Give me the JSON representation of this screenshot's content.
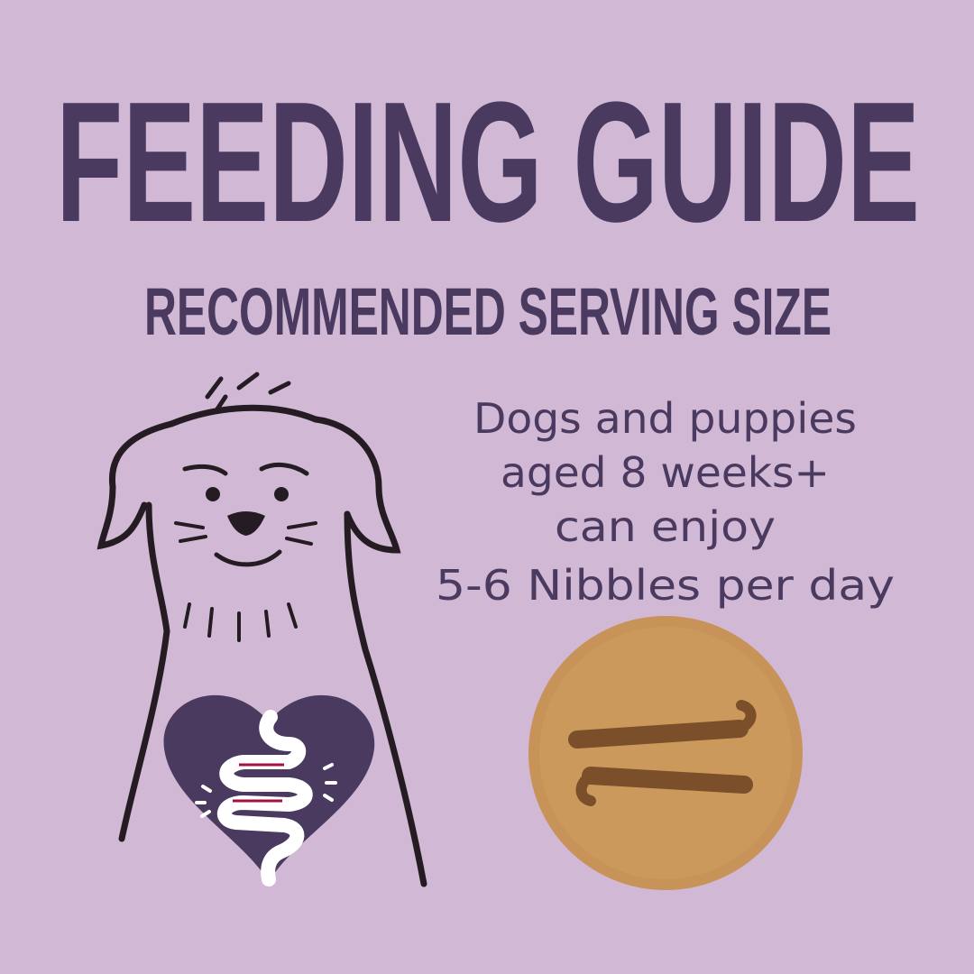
{
  "title": "FEEDING GUIDE",
  "subtitle": "RECOMMENDED SERVING SIZE",
  "description": {
    "lines": [
      "Dogs and puppies",
      "aged 8 weeks+",
      "can enjoy",
      "5-6 Nibbles per day"
    ]
  },
  "colors": {
    "background": "#d1b8d5",
    "text": "#4a3a5f",
    "heart": "#4a3a5f",
    "accent": "#a3113f",
    "biscuit": "#c79358"
  },
  "icons": [
    "dog-illustration",
    "heart-gut-icon",
    "biscuit-image"
  ]
}
